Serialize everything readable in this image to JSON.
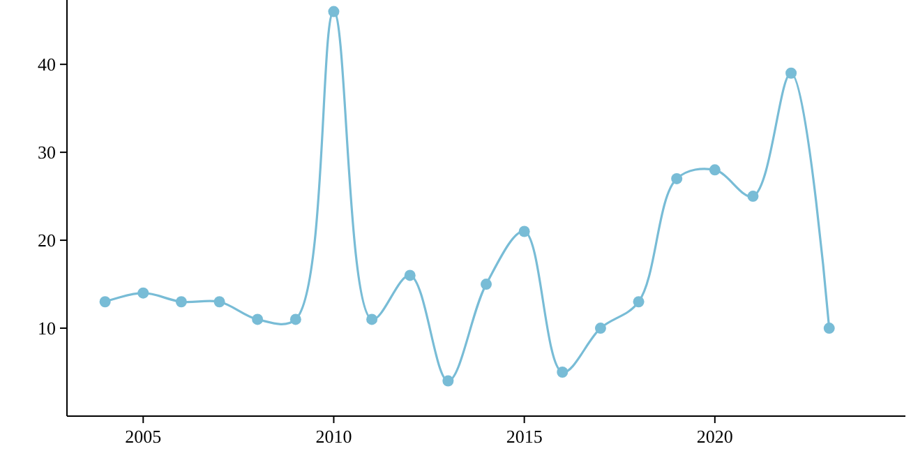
{
  "chart_data": {
    "type": "line",
    "x": [
      2004,
      2005,
      2006,
      2007,
      2008,
      2009,
      2010,
      2011,
      2012,
      2013,
      2014,
      2015,
      2016,
      2017,
      2018,
      2019,
      2020,
      2021,
      2022,
      2023
    ],
    "series": [
      {
        "color": "#78bcd6",
        "values": [
          13,
          14,
          13,
          13,
          11,
          11,
          46,
          11,
          16,
          4,
          15,
          21,
          5,
          10,
          13,
          27,
          28,
          25,
          39,
          10
        ]
      }
    ],
    "xlim": [
      2003,
      2025
    ],
    "xticks": [
      2005,
      2010,
      2015,
      2020
    ],
    "ylim": [
      0,
      47
    ],
    "yticks": [
      10,
      20,
      30,
      40
    ],
    "grid": false,
    "marker": "circle"
  }
}
